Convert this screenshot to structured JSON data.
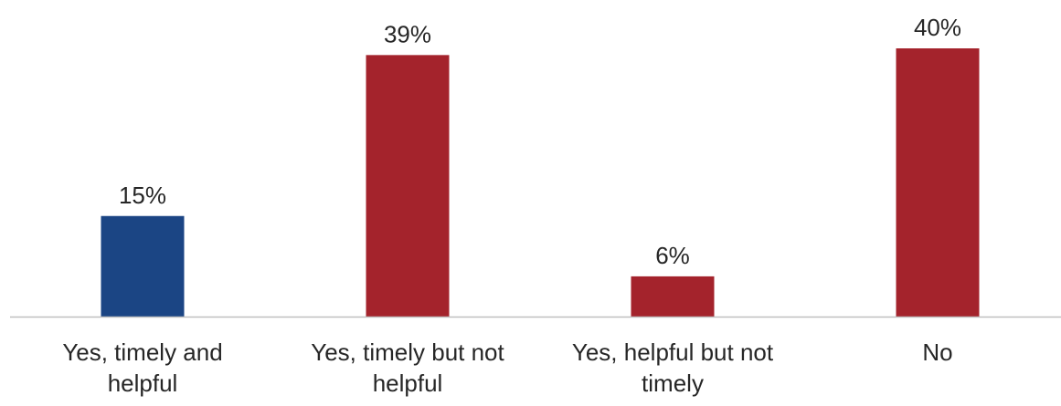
{
  "chart_data": {
    "type": "bar",
    "categories": [
      [
        "Yes, timely and",
        "helpful"
      ],
      [
        "Yes, timely but not",
        "helpful"
      ],
      [
        "Yes, helpful but not",
        "timely"
      ],
      [
        "No"
      ]
    ],
    "values": [
      15,
      39,
      6,
      40
    ],
    "value_labels": [
      "15%",
      "39%",
      "6%",
      "40%"
    ],
    "colors": [
      "#1b4584",
      "#a4232c",
      "#a4232c",
      "#a4232c"
    ],
    "axis_color": "#bfbfbf",
    "ylim": [
      0,
      40
    ],
    "grid": false,
    "title": "",
    "xlabel": "",
    "ylabel": ""
  }
}
